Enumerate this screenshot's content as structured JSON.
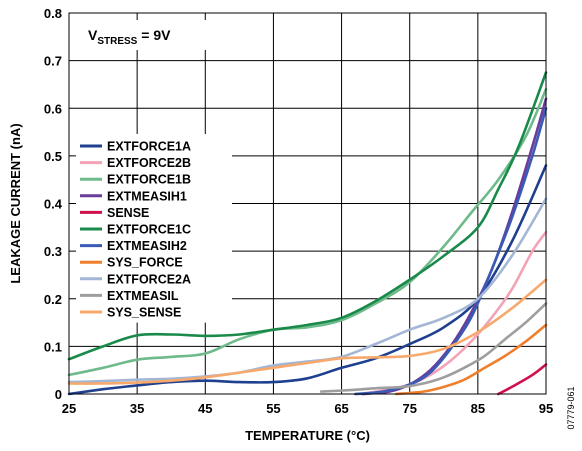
{
  "chart_data": {
    "type": "line",
    "xlabel": "TEMPERATURE (°C)",
    "ylabel": "LEAKAGE CURRENT (nA)",
    "xlim": [
      25,
      95
    ],
    "ylim": [
      0,
      0.8
    ],
    "xticks": [
      "25",
      "35",
      "45",
      "55",
      "65",
      "75",
      "85",
      "95"
    ],
    "yticks": [
      "0",
      "0.1",
      "0.2",
      "0.3",
      "0.4",
      "0.5",
      "0.6",
      "0.7",
      "0.8"
    ],
    "grid": true,
    "legend_position": "left",
    "annotation": {
      "main": "V",
      "sub": "STRESS",
      "rest": " = 9V"
    },
    "figure_id": "07779-061",
    "series": [
      {
        "name": "EXTFORCE1A",
        "color": "#1f3f8f",
        "points": [
          [
            25,
            0.0
          ],
          [
            30,
            0.01
          ],
          [
            35,
            0.018
          ],
          [
            40,
            0.025
          ],
          [
            45,
            0.028
          ],
          [
            50,
            0.025
          ],
          [
            55,
            0.025
          ],
          [
            60,
            0.033
          ],
          [
            65,
            0.055
          ],
          [
            70,
            0.075
          ],
          [
            75,
            0.105
          ],
          [
            80,
            0.14
          ],
          [
            85,
            0.2
          ],
          [
            90,
            0.32
          ],
          [
            95,
            0.48
          ]
        ]
      },
      {
        "name": "EXTFORCE2B",
        "color": "#f4a3b6",
        "points": [
          [
            68,
            0.0
          ],
          [
            72,
            0.01
          ],
          [
            75,
            0.02
          ],
          [
            78,
            0.04
          ],
          [
            81,
            0.07
          ],
          [
            84,
            0.11
          ],
          [
            87,
            0.16
          ],
          [
            90,
            0.22
          ],
          [
            93,
            0.3
          ],
          [
            95,
            0.34
          ]
        ]
      },
      {
        "name": "EXTFORCE1B",
        "color": "#6fba8a",
        "points": [
          [
            25,
            0.04
          ],
          [
            30,
            0.055
          ],
          [
            35,
            0.072
          ],
          [
            40,
            0.078
          ],
          [
            45,
            0.085
          ],
          [
            50,
            0.115
          ],
          [
            55,
            0.135
          ],
          [
            60,
            0.14
          ],
          [
            65,
            0.155
          ],
          [
            70,
            0.19
          ],
          [
            75,
            0.235
          ],
          [
            80,
            0.31
          ],
          [
            84,
            0.38
          ],
          [
            88,
            0.45
          ],
          [
            92,
            0.54
          ],
          [
            95,
            0.64
          ]
        ]
      },
      {
        "name": "EXTMEASIH1",
        "color": "#6a3d9a",
        "points": [
          [
            68,
            0.0
          ],
          [
            72,
            0.005
          ],
          [
            75,
            0.02
          ],
          [
            78,
            0.05
          ],
          [
            81,
            0.1
          ],
          [
            84,
            0.17
          ],
          [
            87,
            0.26
          ],
          [
            90,
            0.38
          ],
          [
            93,
            0.52
          ],
          [
            95,
            0.62
          ]
        ]
      },
      {
        "name": "SENSE",
        "color": "#d0104c",
        "points": [
          [
            88,
            0.0
          ],
          [
            90,
            0.015
          ],
          [
            93,
            0.04
          ],
          [
            95,
            0.062
          ]
        ]
      },
      {
        "name": "EXTFORCE1C",
        "color": "#1a8a4a",
        "points": [
          [
            25,
            0.073
          ],
          [
            30,
            0.1
          ],
          [
            35,
            0.123
          ],
          [
            40,
            0.125
          ],
          [
            45,
            0.122
          ],
          [
            50,
            0.125
          ],
          [
            55,
            0.135
          ],
          [
            60,
            0.145
          ],
          [
            65,
            0.16
          ],
          [
            70,
            0.195
          ],
          [
            75,
            0.24
          ],
          [
            80,
            0.29
          ],
          [
            85,
            0.35
          ],
          [
            88,
            0.43
          ],
          [
            91,
            0.52
          ],
          [
            95,
            0.675
          ]
        ]
      },
      {
        "name": "EXTMEASIH2",
        "color": "#3a5bb5",
        "points": [
          [
            67,
            0.0
          ],
          [
            71,
            0.005
          ],
          [
            75,
            0.02
          ],
          [
            78,
            0.045
          ],
          [
            81,
            0.095
          ],
          [
            84,
            0.16
          ],
          [
            87,
            0.26
          ],
          [
            90,
            0.37
          ],
          [
            93,
            0.5
          ],
          [
            95,
            0.6
          ]
        ]
      },
      {
        "name": "SYS_FORCE",
        "color": "#f07f2c",
        "points": [
          [
            73,
            0.0
          ],
          [
            77,
            0.005
          ],
          [
            80,
            0.015
          ],
          [
            83,
            0.03
          ],
          [
            86,
            0.055
          ],
          [
            89,
            0.08
          ],
          [
            92,
            0.11
          ],
          [
            95,
            0.145
          ]
        ]
      },
      {
        "name": "EXTFORCE2A",
        "color": "#a3b6d6",
        "points": [
          [
            25,
            0.025
          ],
          [
            30,
            0.027
          ],
          [
            35,
            0.03
          ],
          [
            40,
            0.032
          ],
          [
            45,
            0.037
          ],
          [
            50,
            0.045
          ],
          [
            55,
            0.06
          ],
          [
            60,
            0.068
          ],
          [
            65,
            0.078
          ],
          [
            70,
            0.105
          ],
          [
            75,
            0.135
          ],
          [
            80,
            0.16
          ],
          [
            85,
            0.2
          ],
          [
            90,
            0.29
          ],
          [
            95,
            0.41
          ]
        ]
      },
      {
        "name": "EXTMEASIL",
        "color": "#9e9e9e",
        "points": [
          [
            62,
            0.005
          ],
          [
            66,
            0.008
          ],
          [
            70,
            0.012
          ],
          [
            74,
            0.015
          ],
          [
            77,
            0.022
          ],
          [
            80,
            0.035
          ],
          [
            83,
            0.055
          ],
          [
            86,
            0.08
          ],
          [
            89,
            0.115
          ],
          [
            92,
            0.15
          ],
          [
            95,
            0.19
          ]
        ]
      },
      {
        "name": "SYS_SENSE",
        "color": "#f7a96c",
        "points": [
          [
            25,
            0.022
          ],
          [
            30,
            0.022
          ],
          [
            35,
            0.024
          ],
          [
            40,
            0.028
          ],
          [
            45,
            0.035
          ],
          [
            50,
            0.045
          ],
          [
            55,
            0.055
          ],
          [
            60,
            0.065
          ],
          [
            65,
            0.075
          ],
          [
            70,
            0.077
          ],
          [
            75,
            0.08
          ],
          [
            80,
            0.095
          ],
          [
            85,
            0.13
          ],
          [
            90,
            0.18
          ],
          [
            95,
            0.24
          ]
        ]
      }
    ]
  }
}
